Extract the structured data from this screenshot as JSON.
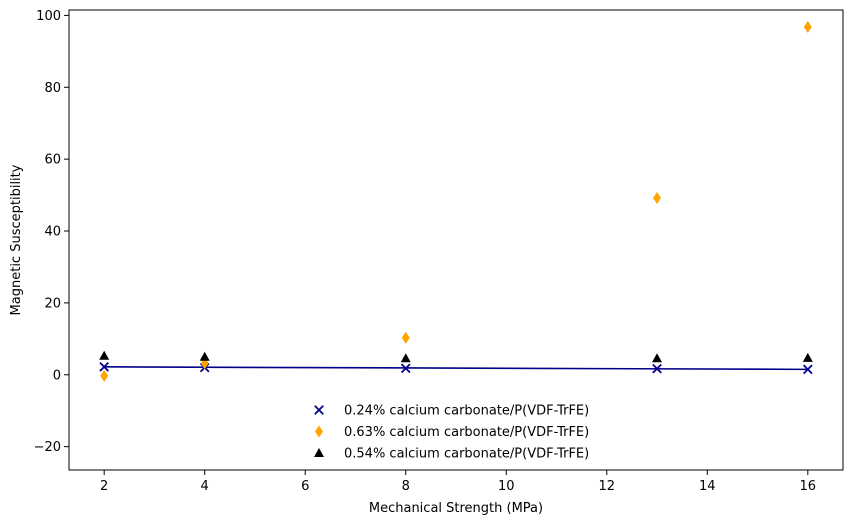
{
  "chart_data": {
    "type": "scatter",
    "xlabel": "Mechanical Strength (MPa)",
    "ylabel": "Magnetic Susceptibility",
    "xlim": [
      1.3,
      16.7
    ],
    "ylim": [
      -26.5,
      101.5
    ],
    "xticks": [
      2,
      4,
      6,
      8,
      10,
      12,
      14,
      16
    ],
    "yticks": [
      -20,
      0,
      20,
      40,
      60,
      80,
      100
    ],
    "grid": false,
    "legend_position": "lower-center",
    "series": [
      {
        "name": "0.24% calcium carbonate/P(VDF-TrFE)",
        "marker": "x",
        "color": "#00008b",
        "x": [
          2,
          4,
          8,
          13,
          16
        ],
        "y": [
          2.2,
          2.0,
          1.8,
          1.7,
          1.5
        ]
      },
      {
        "name": "0.63% calcium carbonate/P(VDF-TrFE)",
        "marker": "thin-diamond",
        "color": "#ffa500",
        "x": [
          2,
          4,
          8,
          13,
          16
        ],
        "y": [
          -0.3,
          3.2,
          10.3,
          49.2,
          96.8
        ]
      },
      {
        "name": "0.54% calcium carbonate/P(VDF-TrFE)",
        "marker": "triangle-up",
        "color": "#000000",
        "x": [
          2,
          4,
          8,
          13,
          16
        ],
        "y": [
          5.3,
          5.0,
          4.6,
          4.6,
          4.7
        ]
      }
    ],
    "trend_line": {
      "color": "#00008b",
      "x": [
        2,
        16
      ],
      "y": [
        2.2,
        1.5
      ]
    }
  }
}
